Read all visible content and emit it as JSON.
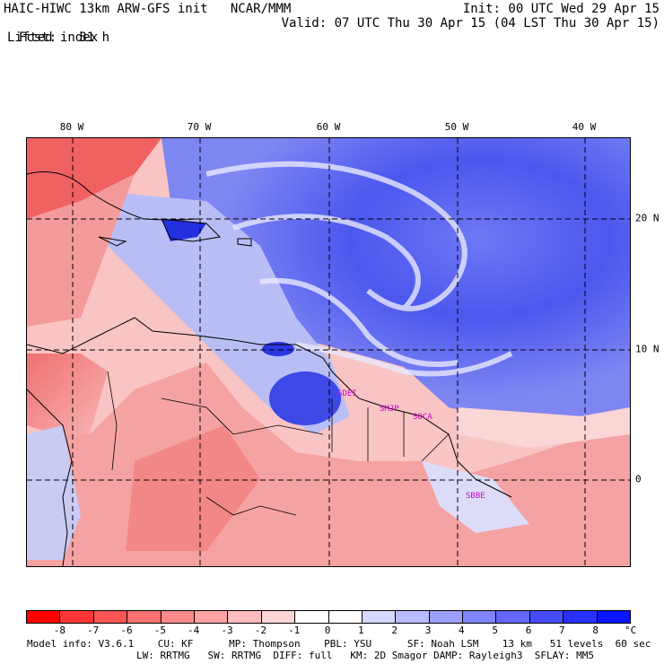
{
  "header": {
    "title_left": "HAIC-HIWC 13km ARW-GFS init   NCAR/MMM",
    "fcst_label": "Fcst:",
    "fcst_value": "31 h",
    "field_name": "Lifted index",
    "init": "Init: 00 UTC Wed 29 Apr 15",
    "valid": "Valid: 07 UTC Thu 30 Apr 15 (04 LST Thu 30 Apr 15)"
  },
  "map": {
    "lon_ticks": [
      "80 W",
      "70 W",
      "60 W",
      "50 W",
      "40 W"
    ],
    "lat_ticks": [
      "20 N",
      "10 N",
      "0"
    ],
    "cities": [
      "SDEI",
      "SMJP",
      "SOCA",
      "SBBE"
    ],
    "colors": {
      "unstable_strong": "#ff3a3a",
      "unstable_mid": "#f59a9a",
      "neutral": "#ffffff",
      "stable_mid": "#8a8ff0",
      "stable_strong": "#1a2ee6",
      "grid": "#000000",
      "city_label": "#d100d1"
    }
  },
  "colorbar": {
    "labels": [
      "-8",
      "-7",
      "-6",
      "-5",
      "-4",
      "-3",
      "-2",
      "-1",
      "0",
      "1",
      "2",
      "3",
      "4",
      "5",
      "6",
      "7",
      "8"
    ],
    "unit": "°C",
    "colors": [
      "#ff0000",
      "#ff3636",
      "#ff5555",
      "#ff7070",
      "#ff8a8a",
      "#ffa3a3",
      "#ffbcbc",
      "#ffd6d6",
      "#ffffff",
      "#ffffff",
      "#d6d8ff",
      "#b9bcff",
      "#9ca0ff",
      "#7f84ff",
      "#6268ff",
      "#454cff",
      "#2830ff",
      "#0b14ff"
    ]
  },
  "footer": {
    "line1": "Model info: V3.6.1    CU: KF      MP: Thompson    PBL: YSU      SF: Noah LSM    13 km   51 levels  60 sec",
    "line2": "LW: RRTMG   SW: RRTMG  DIFF: full   KM: 2D Smagor DAMP: Rayleigh3  SFLAY: MM5"
  }
}
